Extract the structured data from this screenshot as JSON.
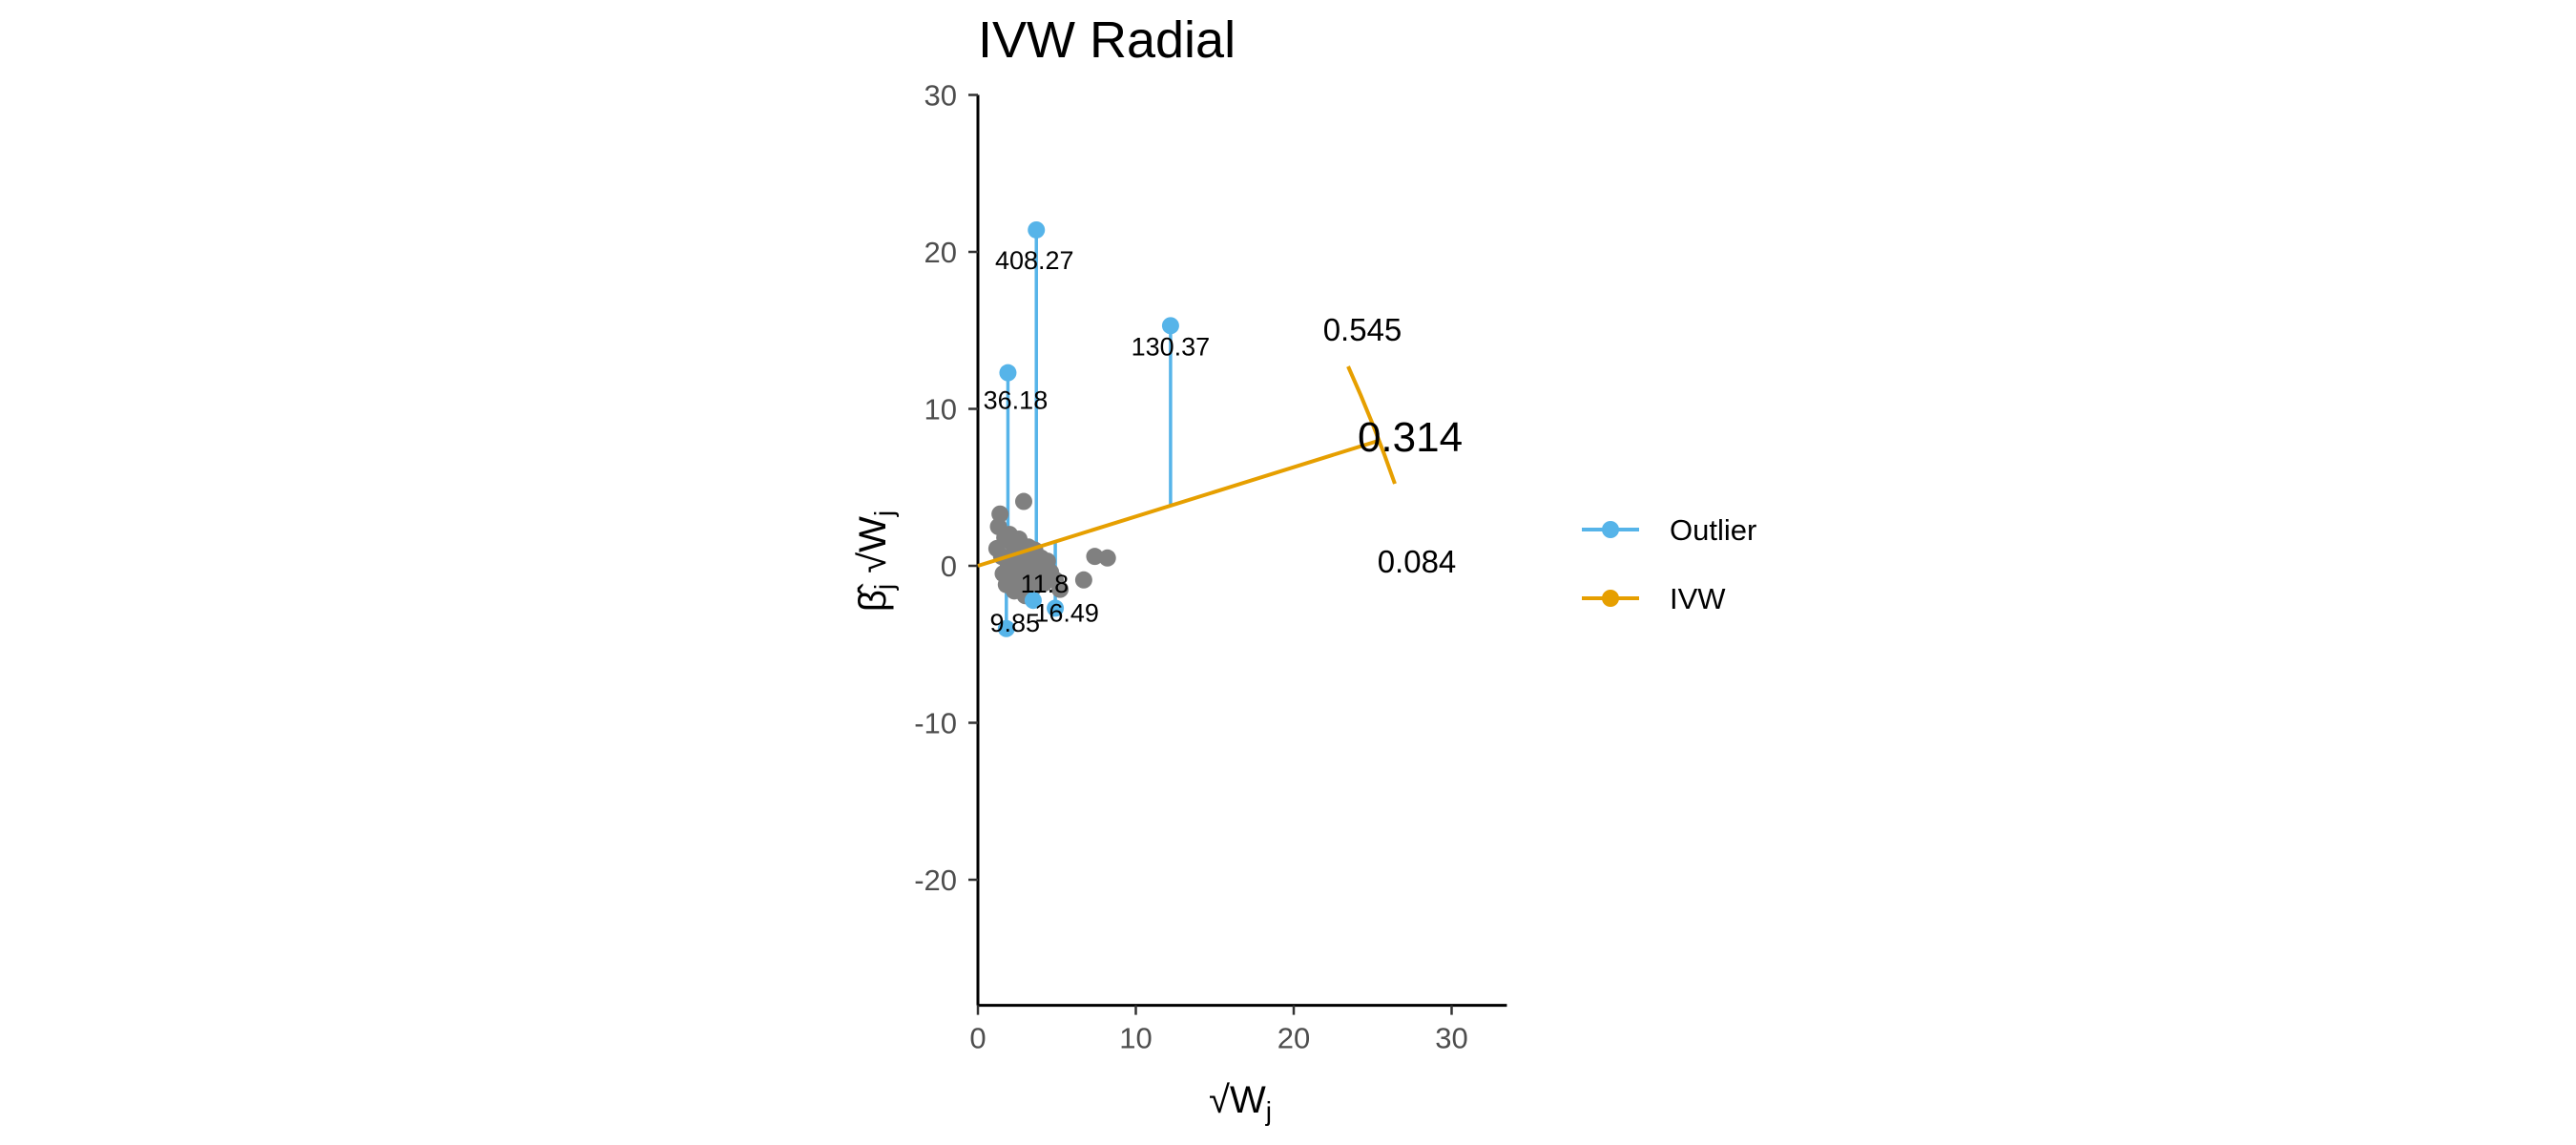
{
  "chart_data": {
    "type": "scatter",
    "title": "IVW Radial",
    "xlabel": "√W_j",
    "ylabel": "β̂_j √W_j",
    "xlim": [
      0,
      33.5
    ],
    "ylim": [
      -28,
      30
    ],
    "xticks": [
      0,
      10,
      20,
      30
    ],
    "yticks": [
      -20,
      -10,
      0,
      10,
      20,
      30
    ],
    "grid": false,
    "legend_position": "right",
    "colors": {
      "outlier": "#56B4E9",
      "ivw": "#E69F00",
      "point": "#808080"
    },
    "legend": [
      {
        "name": "Outlier",
        "color": "#56B4E9"
      },
      {
        "name": "IVW",
        "color": "#E69F00"
      }
    ],
    "points": [
      {
        "x": 1.2,
        "y": 1.1
      },
      {
        "x": 1.3,
        "y": 2.5
      },
      {
        "x": 1.4,
        "y": 3.3
      },
      {
        "x": 1.5,
        "y": 0.6
      },
      {
        "x": 1.6,
        "y": -0.5
      },
      {
        "x": 1.7,
        "y": 1.8
      },
      {
        "x": 1.8,
        "y": -1.2
      },
      {
        "x": 1.9,
        "y": 0.2
      },
      {
        "x": 2.0,
        "y": 2.0
      },
      {
        "x": 2.1,
        "y": -0.8
      },
      {
        "x": 2.2,
        "y": 1.4
      },
      {
        "x": 2.3,
        "y": -1.6
      },
      {
        "x": 2.4,
        "y": 0.9
      },
      {
        "x": 2.5,
        "y": -0.3
      },
      {
        "x": 2.6,
        "y": 1.7
      },
      {
        "x": 2.7,
        "y": -1.0
      },
      {
        "x": 2.8,
        "y": 0.4
      },
      {
        "x": 2.9,
        "y": 4.1
      },
      {
        "x": 3.0,
        "y": -1.9
      },
      {
        "x": 3.1,
        "y": 0.0
      },
      {
        "x": 3.2,
        "y": 1.2
      },
      {
        "x": 3.3,
        "y": -0.6
      },
      {
        "x": 3.4,
        "y": 0.7
      },
      {
        "x": 3.5,
        "y": -1.4
      },
      {
        "x": 3.6,
        "y": 1.0
      },
      {
        "x": 3.8,
        "y": -0.2
      },
      {
        "x": 4.0,
        "y": 0.5
      },
      {
        "x": 4.2,
        "y": -1.1
      },
      {
        "x": 4.4,
        "y": 0.3
      },
      {
        "x": 4.6,
        "y": -0.4
      },
      {
        "x": 4.9,
        "y": -0.9
      },
      {
        "x": 5.2,
        "y": -1.5
      },
      {
        "x": 6.7,
        "y": -0.9
      },
      {
        "x": 7.4,
        "y": 0.6
      },
      {
        "x": 8.2,
        "y": 0.5
      }
    ],
    "outliers": [
      {
        "x": 1.9,
        "y": 12.3,
        "fit": 0.6,
        "label": "36.18"
      },
      {
        "x": 3.7,
        "y": 21.4,
        "fit": 1.16,
        "label": "408.27"
      },
      {
        "x": 12.2,
        "y": 15.3,
        "fit": 3.83,
        "label": "130.37"
      },
      {
        "x": 1.8,
        "y": -4.0,
        "fit": 0.57,
        "label": "9.85"
      },
      {
        "x": 3.5,
        "y": -2.2,
        "fit": 1.1,
        "label": "11.8"
      },
      {
        "x": 4.9,
        "y": -2.7,
        "fit": 1.54,
        "label": "16.49"
      }
    ],
    "ivw_line": {
      "x": [
        0,
        25.3
      ],
      "y": [
        0,
        7.95
      ]
    },
    "arc_labels": {
      "top": "0.545",
      "center": "0.314",
      "bottom": "0.084"
    }
  }
}
